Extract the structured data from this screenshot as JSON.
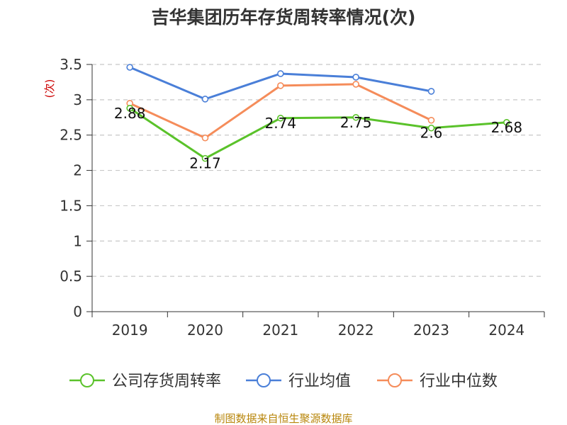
{
  "chart_data": {
    "type": "line",
    "title": "吉华集团历年存货周转率情况(次)",
    "ylabel": "(次)",
    "categories": [
      "2019",
      "2020",
      "2021",
      "2022",
      "2023",
      "2024"
    ],
    "ylim": [
      0,
      3.5
    ],
    "yticks": [
      "0",
      "0.5",
      "1",
      "1.5",
      "2",
      "2.5",
      "3",
      "3.5"
    ],
    "grid": true,
    "legend_position": "bottom",
    "series": [
      {
        "name": "公司存货周转率",
        "color": "#5ac22a",
        "values": [
          2.88,
          2.17,
          2.74,
          2.75,
          2.6,
          2.68
        ],
        "labels": [
          "2.88",
          "2.17",
          "2.74",
          "2.75",
          "2.6",
          "2.68"
        ]
      },
      {
        "name": "行业均值",
        "color": "#4a7fd8",
        "values": [
          3.46,
          3.01,
          3.37,
          3.32,
          3.12,
          null
        ]
      },
      {
        "name": "行业中位数",
        "color": "#f58c5a",
        "values": [
          2.95,
          2.46,
          3.2,
          3.22,
          2.71,
          null
        ]
      }
    ],
    "source": "制图数据来自恒生聚源数据库"
  }
}
